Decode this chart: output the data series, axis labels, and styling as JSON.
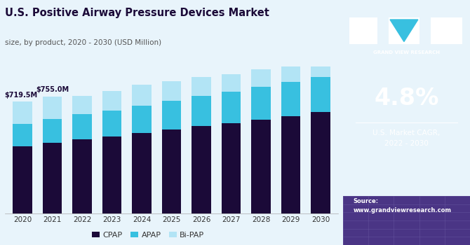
{
  "years": [
    2020,
    2021,
    2022,
    2023,
    2024,
    2025,
    2026,
    2027,
    2028,
    2029,
    2030
  ],
  "cpap": [
    430,
    455,
    478,
    495,
    518,
    540,
    562,
    582,
    605,
    628,
    652
  ],
  "apap": [
    145,
    155,
    162,
    170,
    178,
    188,
    196,
    205,
    213,
    222,
    230
  ],
  "bipap": [
    144.5,
    145,
    120,
    125,
    134,
    127,
    122,
    113,
    112,
    100,
    98
  ],
  "annotation_2020": "$719.5M",
  "annotation_2021": "$755.0M",
  "title": "U.S. Positive Airway Pressure Devices Market",
  "subtitle": "size, by product, 2020 - 2030 (USD Million)",
  "cpap_color": "#1b0a38",
  "apap_color": "#38c0e0",
  "bipap_color": "#b2e4f5",
  "bg_color": "#e8f4fb",
  "right_panel_color": "#3a1c6e",
  "legend_labels": [
    "CPAP",
    "APAP",
    "Bi-PAP"
  ],
  "cagr_text": "4.8%",
  "cagr_label": "U.S. Market CAGR,\n2022 - 2030",
  "source_text": "Source:\nwww.grandviewresearch.com"
}
